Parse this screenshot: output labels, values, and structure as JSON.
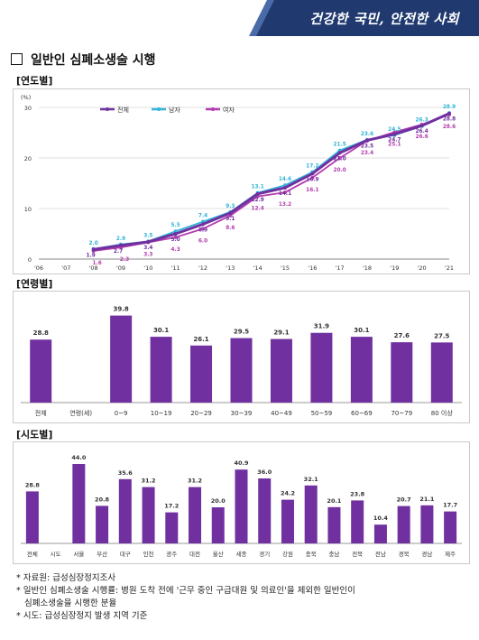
{
  "banner": {
    "slogan": "건강한 국민, 안전한 사회"
  },
  "page": {
    "title": "일반인 심폐소생술 시행"
  },
  "colors": {
    "purple": "#7030a0",
    "cyan": "#30b4d8",
    "magenta": "#b43cae",
    "banner": "#203a70"
  },
  "sections": {
    "year": "[연도별]",
    "age": "[연령별]",
    "region": "[시도별]"
  },
  "chart_data": [
    {
      "type": "line",
      "ylabel": "(%)",
      "ylim": [
        0,
        30
      ],
      "yticks": [
        "0",
        "10",
        "20",
        "30"
      ],
      "categories": [
        "'06",
        "'07",
        "'08",
        "'09",
        "'10",
        "'11",
        "'12",
        "'13",
        "'14",
        "'15",
        "'16",
        "'17",
        "'18",
        "'19",
        "'20",
        "'21"
      ],
      "legend": "top-left",
      "grid": true,
      "series": [
        {
          "name": "전체",
          "color": "#7030a0",
          "values": [
            null,
            null,
            1.9,
            2.7,
            3.4,
            5.0,
            6.9,
            9.1,
            12.9,
            14.1,
            16.9,
            21.0,
            23.5,
            24.7,
            26.4,
            28.8
          ],
          "labels": [
            "",
            "",
            "1.9",
            "2.7",
            "3.4",
            "5.0",
            "6.9",
            "9.1",
            "12.9",
            "14.1",
            "16.9",
            "21.0",
            "23.5",
            "24.7",
            "26.4",
            "28.8"
          ]
        },
        {
          "name": "남자",
          "color": "#30b4d8",
          "values": [
            null,
            null,
            2.0,
            2.9,
            3.5,
            5.5,
            7.4,
            9.3,
            13.1,
            14.6,
            17.2,
            21.5,
            23.6,
            24.5,
            26.3,
            28.9
          ],
          "labels": [
            "",
            "",
            "2.0",
            "2.9",
            "3.5",
            "5.5",
            "7.4",
            "9.3",
            "13.1",
            "14.6",
            "17.2",
            "21.5",
            "23.6",
            "24.5",
            "26.3",
            "28.9"
          ]
        },
        {
          "name": "여자",
          "color": "#b43cae",
          "values": [
            null,
            null,
            1.6,
            2.3,
            3.3,
            4.3,
            6.0,
            8.6,
            12.4,
            13.2,
            16.1,
            20.0,
            23.4,
            25.1,
            26.6,
            28.6
          ],
          "labels": [
            "",
            "",
            "1.6",
            "2.3",
            "3.3",
            "4.3",
            "6.0",
            "8.6",
            "12.4",
            "13.2",
            "16.1",
            "20.0",
            "23.4",
            "25.1",
            "26.6",
            "28.6"
          ]
        }
      ]
    },
    {
      "type": "bar",
      "categories": [
        "전체",
        "연령(세)",
        "0~9",
        "10~19",
        "20~29",
        "30~39",
        "40~49",
        "50~59",
        "60~69",
        "70~79",
        "80 이상"
      ],
      "values": [
        28.8,
        null,
        39.8,
        30.1,
        26.1,
        29.5,
        29.1,
        31.9,
        30.1,
        27.6,
        27.5
      ],
      "labels": [
        "28.8",
        "",
        "39.8",
        "30.1",
        "26.1",
        "29.5",
        "29.1",
        "31.9",
        "30.1",
        "27.6",
        "27.5"
      ],
      "ylim": [
        0,
        45
      ]
    },
    {
      "type": "bar",
      "categories": [
        "전체",
        "시도",
        "서울",
        "부산",
        "대구",
        "인천",
        "광주",
        "대전",
        "울산",
        "세종",
        "경기",
        "강원",
        "충북",
        "충남",
        "전북",
        "전남",
        "경북",
        "경남",
        "제주"
      ],
      "values": [
        28.8,
        null,
        44.0,
        20.8,
        35.6,
        31.2,
        17.2,
        31.2,
        20.0,
        40.9,
        36.0,
        24.2,
        32.1,
        20.1,
        23.8,
        10.4,
        20.7,
        21.1,
        17.7
      ],
      "labels": [
        "28.8",
        "",
        "44.0",
        "20.8",
        "35.6",
        "31.2",
        "17.2",
        "31.2",
        "20.0",
        "40.9",
        "36.0",
        "24.2",
        "32.1",
        "20.1",
        "23.8",
        "10.4",
        "20.7",
        "21.1",
        "17.7"
      ],
      "ylim": [
        0,
        50
      ]
    }
  ],
  "footnotes": [
    "* 자료원: 급성심장정지조사",
    "* 일반인 심폐소생술 시행률: 병원 도착 전에 '근무 중인 구급대원 및 의료인'을 제외한 일반인이",
    "  심폐소생술을 시행한 분율",
    "* 시도: 급성심장정지 발생 지역 기준"
  ]
}
